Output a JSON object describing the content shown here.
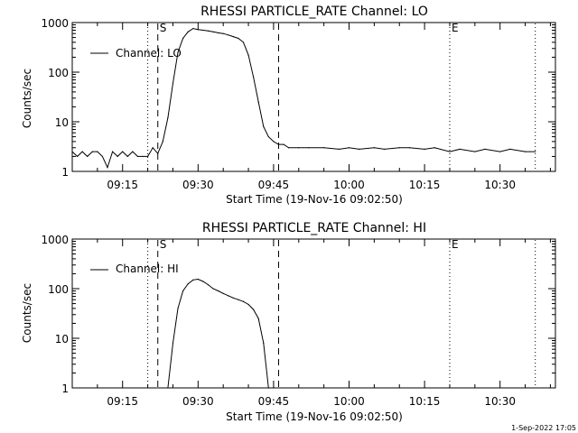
{
  "timestamp": "1-Sep-2022 17:05",
  "chart_data": [
    {
      "type": "line",
      "title": "RHESSI PARTICLE_RATE Channel: LO",
      "xlabel": "Start Time (19-Nov-16 09:02:50)",
      "ylabel": "Counts/sec",
      "yscale": "log",
      "ylim": [
        1,
        1000
      ],
      "yticks": [
        "1",
        "10",
        "100",
        "1000"
      ],
      "xlim": [
        "09:05",
        "10:41"
      ],
      "xticks": [
        "09:15",
        "09:30",
        "09:45",
        "10:00",
        "10:15",
        "10:30"
      ],
      "legend": {
        "label": "Channel: LO",
        "position": "top-left"
      },
      "markers": [
        {
          "time": "09:20",
          "style": "dotted",
          "label": ""
        },
        {
          "time": "09:22",
          "style": "dashed",
          "label": "S"
        },
        {
          "time": "09:46",
          "style": "dashed",
          "label": ""
        },
        {
          "time": "10:20",
          "style": "dotted",
          "label": "E"
        },
        {
          "time": "10:37",
          "style": "dotted",
          "label": ""
        }
      ],
      "series": [
        {
          "name": "Channel: LO",
          "x": [
            "09:05",
            "09:06",
            "09:07",
            "09:08",
            "09:09",
            "09:10",
            "09:11",
            "09:12",
            "09:13",
            "09:14",
            "09:15",
            "09:16",
            "09:17",
            "09:18",
            "09:19",
            "09:20",
            "09:21",
            "09:22",
            "09:23",
            "09:24",
            "09:25",
            "09:26",
            "09:27",
            "09:28",
            "09:29",
            "09:30",
            "09:31",
            "09:32",
            "09:33",
            "09:34",
            "09:35",
            "09:36",
            "09:37",
            "09:38",
            "09:39",
            "09:40",
            "09:41",
            "09:42",
            "09:43",
            "09:44",
            "09:45",
            "09:46",
            "09:47",
            "09:48",
            "09:50",
            "09:52",
            "09:55",
            "09:58",
            "10:00",
            "10:02",
            "10:05",
            "10:07",
            "10:10",
            "10:12",
            "10:15",
            "10:17",
            "10:20",
            "10:22",
            "10:25",
            "10:27",
            "10:30",
            "10:32",
            "10:35",
            "10:37"
          ],
          "y": [
            2.5,
            2,
            2.5,
            2,
            2.5,
            2.5,
            2,
            1.2,
            2.5,
            2,
            2.5,
            2,
            2.5,
            2,
            2,
            2,
            3,
            2.3,
            4,
            12,
            60,
            250,
            480,
            650,
            760,
            720,
            700,
            680,
            650,
            620,
            600,
            560,
            520,
            480,
            400,
            220,
            80,
            25,
            8,
            5,
            4,
            3.5,
            3.5,
            3,
            3,
            3,
            3,
            2.8,
            3,
            2.8,
            3,
            2.8,
            3,
            3,
            2.8,
            3,
            2.5,
            2.8,
            2.5,
            2.8,
            2.5,
            2.8,
            2.5,
            2.5
          ]
        }
      ]
    },
    {
      "type": "line",
      "title": "RHESSI PARTICLE_RATE Channel: HI",
      "xlabel": "Start Time (19-Nov-16 09:02:50)",
      "ylabel": "Counts/sec",
      "yscale": "log",
      "ylim": [
        1,
        1000
      ],
      "yticks": [
        "1",
        "10",
        "100",
        "1000"
      ],
      "xlim": [
        "09:05",
        "10:41"
      ],
      "xticks": [
        "09:15",
        "09:30",
        "09:45",
        "10:00",
        "10:15",
        "10:30"
      ],
      "legend": {
        "label": "Channel: HI",
        "position": "top-left"
      },
      "markers": [
        {
          "time": "09:20",
          "style": "dotted",
          "label": ""
        },
        {
          "time": "09:22",
          "style": "dashed",
          "label": "S"
        },
        {
          "time": "09:46",
          "style": "dashed",
          "label": ""
        },
        {
          "time": "10:20",
          "style": "dotted",
          "label": "E"
        },
        {
          "time": "10:37",
          "style": "dotted",
          "label": ""
        }
      ],
      "series": [
        {
          "name": "Channel: HI",
          "x": [
            "09:24",
            "09:25",
            "09:26",
            "09:27",
            "09:28",
            "09:29",
            "09:30",
            "09:31",
            "09:32",
            "09:33",
            "09:34",
            "09:35",
            "09:36",
            "09:37",
            "09:38",
            "09:39",
            "09:40",
            "09:41",
            "09:42",
            "09:43",
            "09:44"
          ],
          "y": [
            1,
            8,
            40,
            90,
            125,
            150,
            155,
            140,
            120,
            100,
            90,
            80,
            72,
            65,
            60,
            55,
            48,
            38,
            25,
            8,
            1
          ]
        }
      ]
    }
  ]
}
